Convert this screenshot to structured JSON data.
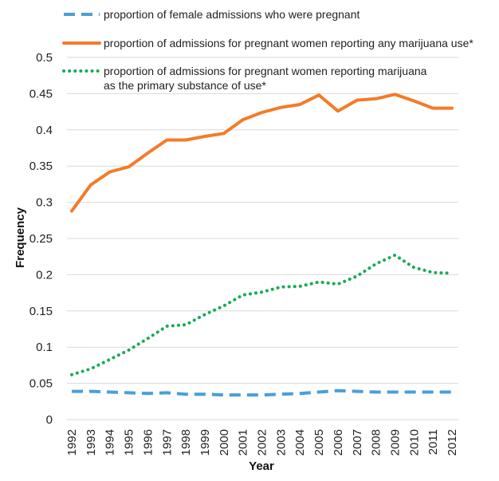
{
  "chart_data": {
    "type": "line",
    "title": "",
    "xlabel": "Year",
    "ylabel": "Frequency",
    "ylim": [
      0,
      0.5
    ],
    "grid": true,
    "legend_position": "top",
    "x": [
      "1992",
      "1993",
      "1994",
      "1995",
      "1996",
      "1997",
      "1998",
      "1999",
      "2000",
      "2001",
      "2002",
      "2003",
      "2004",
      "2005",
      "2006",
      "2007",
      "2008",
      "2009",
      "2010",
      "2011",
      "2012"
    ],
    "y_ticks": [
      "0",
      "0.05",
      "0.1",
      "0.15",
      "0.2",
      "0.25",
      "0.3",
      "0.35",
      "0.4",
      "0.45",
      "0.5"
    ],
    "series": [
      {
        "name": "proportion of female admissions who were pregnant",
        "legend_lines": [
          "proportion of female admissions who were pregnant"
        ],
        "color": "#4a9fd8",
        "style": "dashed",
        "values": [
          0.039,
          0.039,
          0.038,
          0.037,
          0.036,
          0.037,
          0.035,
          0.035,
          0.034,
          0.034,
          0.034,
          0.035,
          0.036,
          0.038,
          0.04,
          0.039,
          0.038,
          0.038,
          0.038,
          0.038,
          0.038
        ]
      },
      {
        "name": "proportion of admissions for pregnant women reporting any marijuana use*",
        "legend_lines": [
          "proportion of admissions for pregnant women reporting any marijuana use*"
        ],
        "color": "#f47b2a",
        "style": "solid",
        "values": [
          0.288,
          0.324,
          0.342,
          0.349,
          0.368,
          0.386,
          0.386,
          0.391,
          0.395,
          0.414,
          0.424,
          0.431,
          0.435,
          0.448,
          0.426,
          0.441,
          0.443,
          0.449,
          0.44,
          0.43,
          0.43
        ]
      },
      {
        "name": "proportion of admissions for pregnant women reporting marijuana as the primary substance of use*",
        "legend_lines": [
          "proportion of admissions for pregnant women reporting marijuana",
          "as the primary substance of use*"
        ],
        "color": "#1aaa55",
        "style": "dotted",
        "values": [
          0.062,
          0.07,
          0.083,
          0.096,
          0.112,
          0.129,
          0.131,
          0.145,
          0.157,
          0.172,
          0.176,
          0.183,
          0.184,
          0.19,
          0.187,
          0.198,
          0.215,
          0.227,
          0.21,
          0.203,
          0.202
        ]
      }
    ]
  }
}
